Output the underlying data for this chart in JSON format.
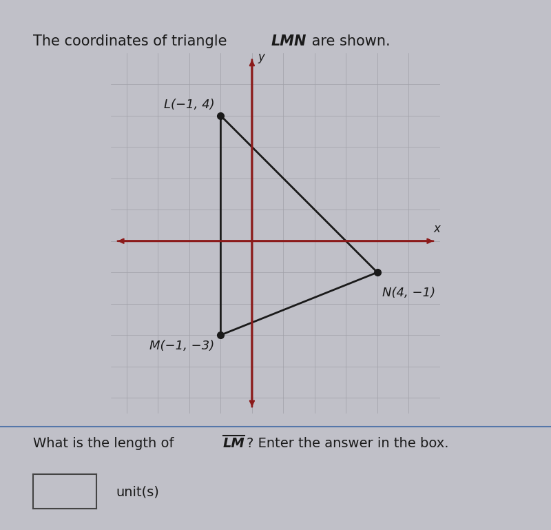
{
  "title_text": "The coordinates of triangle ",
  "title_italic": "LMN",
  "title_suffix": " are shown.",
  "L": [
    -1,
    4
  ],
  "M": [
    -1,
    -3
  ],
  "N": [
    4,
    -1
  ],
  "bg_color": "#c0c0c8",
  "grid_bg": "#b8b8c0",
  "triangle_color": "#1a1a1a",
  "axis_color": "#8b1a1a",
  "point_color": "#1a1a1a",
  "label_color": "#1a1a1a",
  "xlim": [
    -4.5,
    6.0
  ],
  "ylim": [
    -5.5,
    6.0
  ],
  "question_text": "What is the length of ",
  "question_LM": "LM",
  "question_suffix": "? Enter the answer in the box.",
  "units_text": "unit(s)",
  "bottom_text_color": "#1a1a1a",
  "separator_color": "#5577aa",
  "font_size_title": 15,
  "font_size_labels": 13,
  "font_size_question": 14
}
